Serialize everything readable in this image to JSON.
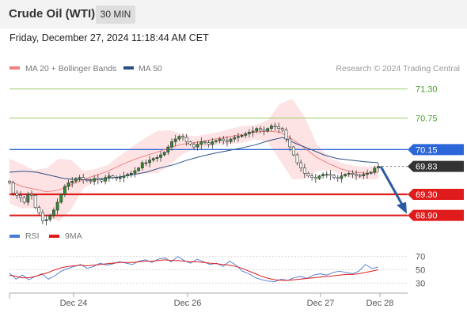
{
  "header": {
    "title": "Crude Oil (WTI)",
    "interval": "30 MIN",
    "timestamp": "Friday, December 27, 2024 11:18:44 AM CET"
  },
  "legend": {
    "ma20": "MA 20 + Bollinger Bands",
    "ma50": "MA 50",
    "credit": "Research © 2024 Trading Central",
    "rsi": "RSI",
    "rsi_ma": "9MA"
  },
  "colors": {
    "ma20": "#f08080",
    "ma50": "#2c4f86",
    "bollinger_fill": "#fde3e3",
    "candle": "#2e8b2e",
    "resistance": "#2c66d8",
    "support": "#e01b1b",
    "target_up": "#9ccc65",
    "arrow": "#2c5aa0",
    "rsi": "#4a7bd8",
    "rsi_ma": "#e01b1b"
  },
  "chart_data": [
    {
      "type": "line",
      "title": "Crude Oil (WTI)",
      "interval": "30 MIN",
      "x_ticks": [
        "Dec 24",
        "Dec 26",
        "Dec 27",
        "Dec 28"
      ],
      "ylim": [
        68.7,
        71.55
      ],
      "last_price": 69.83,
      "levels": [
        {
          "value": 71.3,
          "label": "71.30",
          "kind": "target"
        },
        {
          "value": 70.75,
          "label": "70.75",
          "kind": "target"
        },
        {
          "value": 70.15,
          "label": "70.15",
          "kind": "resistance"
        },
        {
          "value": 69.83,
          "label": "69.83",
          "kind": "last"
        },
        {
          "value": 69.3,
          "label": "69.30",
          "kind": "support"
        },
        {
          "value": 68.9,
          "label": "68.90",
          "kind": "support"
        }
      ],
      "series": [
        {
          "name": "Crude Oil (WTI)",
          "type": "candlestick",
          "values": [
            69.52,
            69.32,
            69.28,
            69.24,
            69.15,
            69.3,
            69.28,
            69.05,
            68.95,
            68.8,
            68.82,
            68.9,
            69.0,
            69.15,
            69.3,
            69.45,
            69.52,
            69.55,
            69.6,
            69.62,
            69.58,
            69.56,
            69.55,
            69.6,
            69.58,
            69.55,
            69.62,
            69.65,
            69.62,
            69.6,
            69.62,
            69.65,
            69.68,
            69.7,
            69.75,
            69.8,
            69.9,
            69.9,
            69.95,
            69.98,
            70.0,
            70.05,
            70.1,
            70.2,
            70.3,
            70.35,
            70.4,
            70.38,
            70.3,
            70.25,
            70.2,
            70.25,
            70.3,
            70.28,
            70.25,
            70.3,
            70.32,
            70.35,
            70.32,
            70.3,
            70.35,
            70.38,
            70.4,
            70.42,
            70.45,
            70.48,
            70.5,
            70.55,
            70.52,
            70.5,
            70.55,
            70.6,
            70.58,
            70.55,
            70.52,
            70.35,
            70.2,
            70.05,
            69.9,
            69.8,
            69.7,
            69.65,
            69.62,
            69.6,
            69.65,
            69.68,
            69.68,
            69.66,
            69.62,
            69.6,
            69.65,
            69.68,
            69.7,
            69.68,
            69.66,
            69.65,
            69.68,
            69.7,
            69.72,
            69.8,
            69.83
          ]
        },
        {
          "name": "MA 20",
          "type": "line",
          "values": [
            69.55,
            69.45,
            69.4,
            69.35,
            69.38,
            69.48,
            69.58,
            69.66,
            69.74,
            69.85,
            69.95,
            70.03,
            70.1,
            70.18,
            70.25,
            70.28,
            70.32,
            70.36,
            70.4,
            70.44,
            70.48,
            70.5,
            70.48,
            70.35,
            70.18,
            70.0,
            69.88,
            69.78,
            69.72,
            69.7,
            69.72
          ]
        },
        {
          "name": "MA 50",
          "type": "line",
          "values": [
            69.72,
            69.74,
            69.72,
            69.66,
            69.6,
            69.58,
            69.58,
            69.6,
            69.63,
            69.67,
            69.72,
            69.8,
            69.86,
            69.95,
            70.02,
            70.08,
            70.13,
            70.18,
            70.24,
            70.32,
            70.38,
            70.26,
            70.16,
            70.05,
            69.98,
            69.95,
            69.92,
            69.9
          ]
        }
      ]
    },
    {
      "type": "line",
      "title": "RSI",
      "ylim": [
        22,
        78
      ],
      "y_ticks": [
        70,
        50,
        30
      ],
      "series": [
        {
          "name": "RSI",
          "values": [
            45,
            36,
            42,
            35,
            40,
            44,
            36,
            41,
            48,
            52,
            55,
            58,
            52,
            55,
            60,
            57,
            59,
            62,
            60,
            58,
            63,
            65,
            61,
            66,
            68,
            62,
            70,
            64,
            60,
            66,
            62,
            58,
            60,
            55,
            63,
            57,
            48,
            44,
            38,
            35,
            33,
            32,
            36,
            34,
            38,
            40,
            37,
            42,
            44,
            42,
            46,
            48,
            46,
            44,
            48,
            58,
            52,
            54
          ]
        },
        {
          "name": "9MA",
          "values": [
            42,
            40,
            38,
            38,
            40,
            43,
            46,
            50,
            53,
            55,
            56,
            57,
            56,
            57,
            58,
            59,
            60,
            61,
            61,
            61,
            62,
            63,
            63,
            64,
            65,
            64,
            64,
            63,
            62,
            62,
            61,
            60,
            59,
            58,
            57,
            55,
            52,
            48,
            44,
            40,
            37,
            35,
            34,
            34,
            35,
            36,
            37,
            38,
            39,
            40,
            41,
            42,
            43,
            43,
            44,
            46,
            48,
            50
          ]
        }
      ]
    }
  ]
}
